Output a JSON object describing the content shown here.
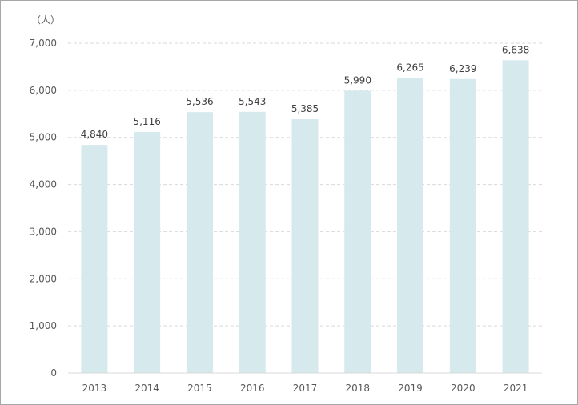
{
  "chart_data": {
    "type": "bar",
    "unit_label": "（人）",
    "categories": [
      "2013",
      "2014",
      "2015",
      "2016",
      "2017",
      "2018",
      "2019",
      "2020",
      "2021"
    ],
    "values": [
      4840,
      5116,
      5536,
      5543,
      5385,
      5990,
      6265,
      6239,
      6638
    ],
    "value_labels": [
      "4,840",
      "5,116",
      "5,536",
      "5,543",
      "5,385",
      "5,990",
      "6,265",
      "6,239",
      "6,638"
    ],
    "yticks": [
      "0",
      "1,000",
      "2,000",
      "3,000",
      "4,000",
      "5,000",
      "6,000",
      "7,000"
    ],
    "ylim": [
      0,
      7000
    ],
    "bar_color": "#d6e9ec",
    "grid": true,
    "title": "",
    "xlabel": "",
    "ylabel": ""
  }
}
